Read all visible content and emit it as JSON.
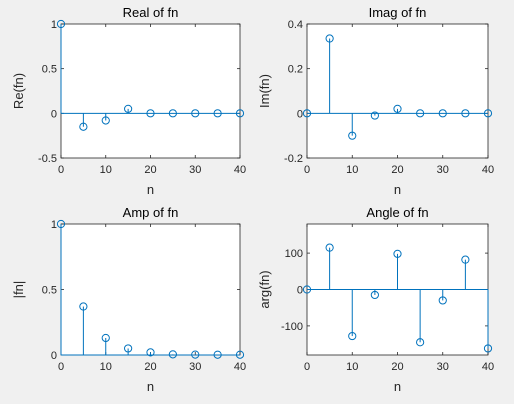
{
  "chart_data": [
    {
      "type": "stem",
      "title": "Real of fn",
      "xlabel": "n",
      "ylabel": "Re(fn)",
      "xlim": [
        0,
        40
      ],
      "ylim": [
        -0.5,
        1
      ],
      "xticks": [
        "0",
        "10",
        "20",
        "30",
        "40"
      ],
      "yticks": [
        "-0.5",
        "0",
        "0.5",
        "1"
      ],
      "x": [
        0,
        5,
        10,
        15,
        20,
        25,
        30,
        35,
        40
      ],
      "values": [
        1.0,
        -0.15,
        -0.08,
        0.05,
        0.0,
        0.0,
        0.0,
        0.0,
        0.0
      ],
      "color": "#0072bd"
    },
    {
      "type": "stem",
      "title": "Imag of fn",
      "xlabel": "n",
      "ylabel": "Im(fn)",
      "xlim": [
        0,
        40
      ],
      "ylim": [
        -0.2,
        0.4
      ],
      "xticks": [
        "0",
        "10",
        "20",
        "30",
        "40"
      ],
      "yticks": [
        "-0.2",
        "0",
        "0.2",
        "0.4"
      ],
      "x": [
        0,
        5,
        10,
        15,
        20,
        25,
        30,
        35,
        40
      ],
      "values": [
        0.0,
        0.335,
        -0.1,
        -0.01,
        0.02,
        0.0,
        0.0,
        0.0,
        0.0
      ],
      "color": "#0072bd"
    },
    {
      "type": "stem",
      "title": "Amp of fn",
      "xlabel": "n",
      "ylabel": "|fn|",
      "xlim": [
        0,
        40
      ],
      "ylim": [
        0,
        1
      ],
      "xticks": [
        "0",
        "10",
        "20",
        "30",
        "40"
      ],
      "yticks": [
        "0",
        "0.5",
        "1"
      ],
      "x": [
        0,
        5,
        10,
        15,
        20,
        25,
        30,
        35,
        40
      ],
      "values": [
        1.0,
        0.37,
        0.13,
        0.05,
        0.02,
        0.005,
        0.003,
        0.002,
        0.002
      ],
      "color": "#0072bd"
    },
    {
      "type": "stem",
      "title": "Angle of fn",
      "xlabel": "n",
      "ylabel": "arg(fn)",
      "xlim": [
        0,
        40
      ],
      "ylim": [
        -180,
        180
      ],
      "xticks": [
        "0",
        "10",
        "20",
        "30",
        "40"
      ],
      "yticks": [
        "-100",
        "0",
        "100"
      ],
      "ytick_values": [
        -100,
        0,
        100
      ],
      "x": [
        0,
        5,
        10,
        15,
        20,
        25,
        30,
        35,
        40
      ],
      "values": [
        0,
        115,
        -128,
        -15,
        98,
        -145,
        -30,
        82,
        -162
      ],
      "color": "#0072bd"
    }
  ]
}
